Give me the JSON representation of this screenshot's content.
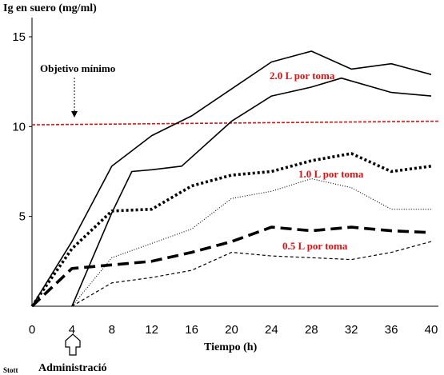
{
  "chart_data": {
    "type": "line",
    "ylabel": "Ig en suero (mg/ml)",
    "xlabel": "Tiempo (h)",
    "xlim": [
      0,
      40
    ],
    "ylim": [
      0,
      15
    ],
    "xticks": [
      "0",
      "4",
      "8",
      "12",
      "16",
      "20",
      "24",
      "28",
      "32",
      "36",
      "40"
    ],
    "yticks": [
      "5",
      "10",
      "15"
    ],
    "target_label": "Objetivo mínimo",
    "target_value": 10.1,
    "annotations": {
      "high": "2.0 L por toma",
      "mid": "1.0 L por toma",
      "low": "0.5 L por toma"
    },
    "admin_label": "Administració",
    "credit": "Stott",
    "colors": {
      "accent": "#dd1111",
      "line": "#000000"
    },
    "series": [
      {
        "style": "solid",
        "x": [
          0,
          4,
          8,
          12,
          16,
          20,
          24,
          28,
          32,
          36,
          40
        ],
        "y": [
          0,
          3.6,
          7.8,
          9.5,
          10.6,
          12.1,
          13.6,
          14.2,
          13.2,
          13.5,
          12.9
        ]
      },
      {
        "style": "solid",
        "x": [
          4,
          8,
          10,
          12,
          15,
          20,
          24,
          28,
          31,
          36,
          40
        ],
        "y": [
          0,
          5.2,
          7.5,
          7.6,
          7.8,
          10.3,
          11.7,
          12.2,
          12.7,
          11.9,
          11.7
        ]
      },
      {
        "style": "dotted-heavy",
        "x": [
          0,
          4,
          8,
          12,
          16,
          20,
          24,
          28,
          32,
          36,
          40
        ],
        "y": [
          0,
          3.2,
          5.3,
          5.4,
          6.7,
          7.3,
          7.5,
          8.1,
          8.5,
          7.5,
          7.8
        ]
      },
      {
        "style": "dotted-light",
        "x": [
          4,
          8,
          12,
          16,
          20,
          24,
          28,
          32,
          36,
          40
        ],
        "y": [
          0,
          2.7,
          3.5,
          4.3,
          6.0,
          6.4,
          7.1,
          6.6,
          5.4,
          5.4
        ]
      },
      {
        "style": "dashed-heavy",
        "x": [
          0,
          4,
          8,
          12,
          16,
          20,
          24,
          28,
          32,
          36,
          40
        ],
        "y": [
          0,
          2.1,
          2.3,
          2.5,
          3.0,
          3.6,
          4.4,
          4.2,
          4.4,
          4.2,
          4.1
        ]
      },
      {
        "style": "dashed-light",
        "x": [
          4,
          8,
          12,
          16,
          20,
          24,
          28,
          32,
          36,
          40
        ],
        "y": [
          0,
          1.3,
          1.6,
          2.0,
          3.0,
          2.8,
          2.7,
          2.6,
          3.0,
          3.6
        ]
      }
    ]
  }
}
